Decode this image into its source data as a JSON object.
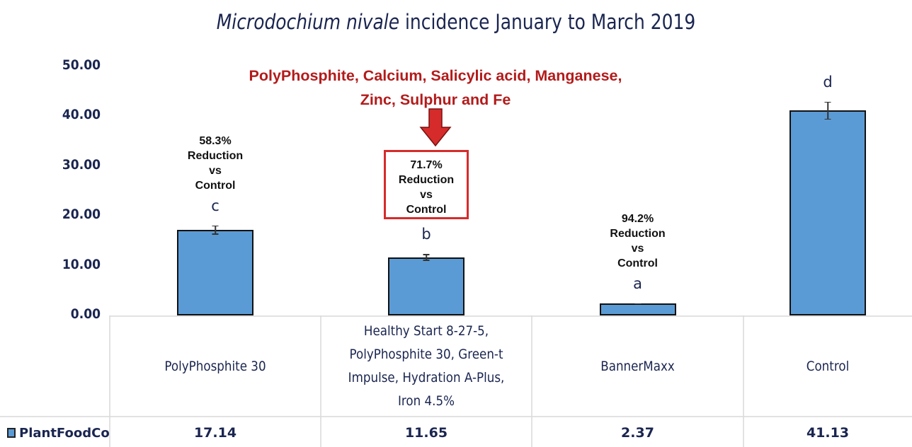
{
  "chart_data": {
    "type": "bar",
    "title_italic": "Microdochium nivale",
    "title_rest": " incidence January to March 2019",
    "callout_line1": "PolyPhosphite, Calcium, Salicylic acid, Manganese,",
    "callout_line2": "Zinc, Sulphur and Fe",
    "y_ticks": [
      "50.00",
      "40.00",
      "30.00",
      "20.00",
      "10.00",
      "0.00"
    ],
    "ylim": [
      0,
      50
    ],
    "categories": [
      "PolyPhosphite 30",
      "Healthy Start 8-27-5, PolyPhosphite 30, Green-t Impulse, Hydration A-Plus, Iron 4.5%",
      "BannerMaxx",
      "Control"
    ],
    "series": [
      {
        "name": "PlantFoodCo",
        "values": [
          17.14,
          11.65,
          2.37,
          41.13
        ],
        "value_labels": [
          "17.14",
          "11.65",
          "2.37",
          "41.13"
        ],
        "error": [
          0.9,
          0.7,
          0.1,
          1.8
        ],
        "color": "#5b9bd5"
      }
    ],
    "significance": [
      "c",
      "b",
      "a",
      "d"
    ],
    "reductions": [
      {
        "pct": "58.3%",
        "l2": "Reduction",
        "l3": "vs",
        "l4": "Control",
        "boxed": false
      },
      {
        "pct": "71.7%",
        "l2": "Reduction",
        "l3": "vs",
        "l4": "Control",
        "boxed": true
      },
      {
        "pct": "94.2%",
        "l2": "Reduction",
        "l3": "vs",
        "l4": "Control",
        "boxed": false
      }
    ],
    "legend": {
      "label": "PlantFoodCo",
      "color": "#5b9bd5"
    },
    "accent_colors": {
      "callout": "#b31b1b",
      "box": "#d62b2b",
      "text": "#1a2550"
    }
  }
}
